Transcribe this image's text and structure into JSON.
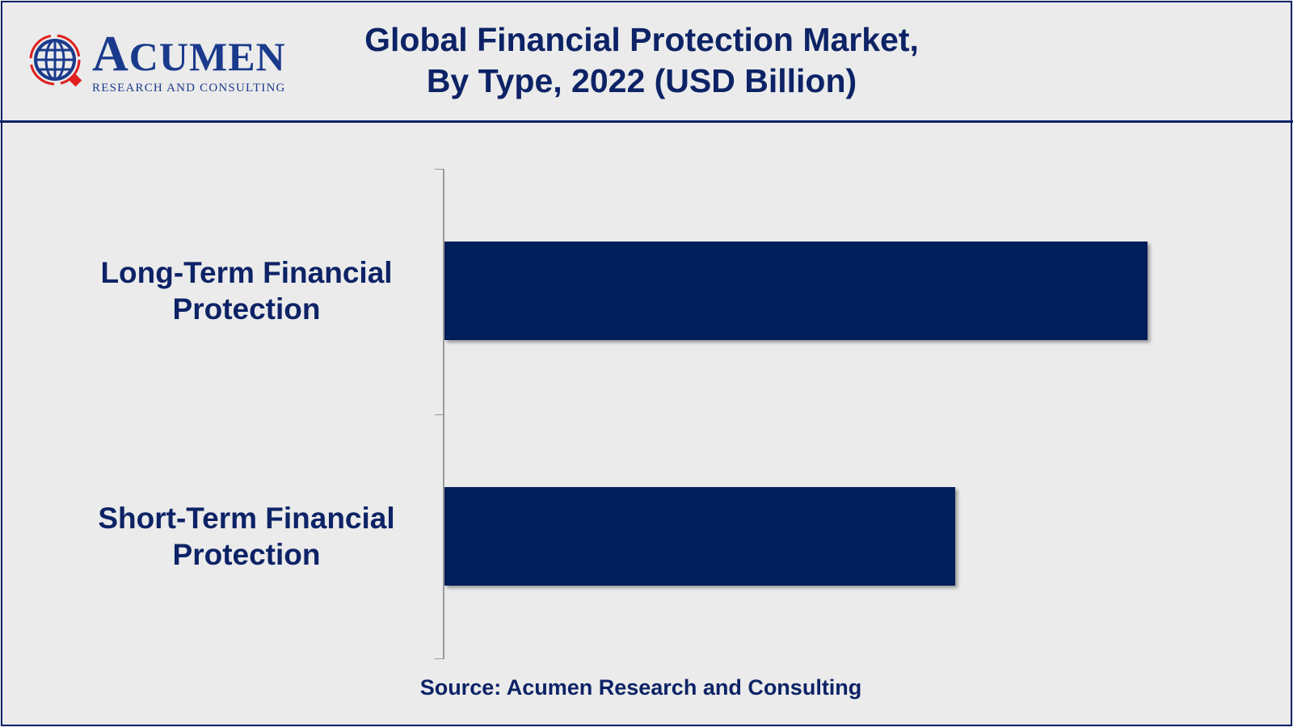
{
  "logo": {
    "name": "ACUMEN",
    "tagline": "RESEARCH AND CONSULTING"
  },
  "source": "Source: Acumen Research and Consulting",
  "colors": {
    "bar": "#001e5a",
    "text": "#0d2366",
    "logo_red": "#e02020"
  },
  "chart_data": {
    "type": "bar",
    "orientation": "horizontal",
    "title": "Global Financial Protection Market,",
    "subtitle": "By Type, 2022 (USD Billion)",
    "categories": [
      "Long-Term Financial Protection",
      "Short-Term Financial Protection"
    ],
    "category_lines": [
      [
        "Long-Term Financial",
        "Protection"
      ],
      [
        "Short-Term Financial",
        "Protection"
      ]
    ],
    "values": [
      1.0,
      0.726
    ],
    "value_note": "relative",
    "xlabel": "",
    "ylabel": "",
    "xlim": [
      0,
      1
    ],
    "grid": false,
    "legend": "none"
  }
}
